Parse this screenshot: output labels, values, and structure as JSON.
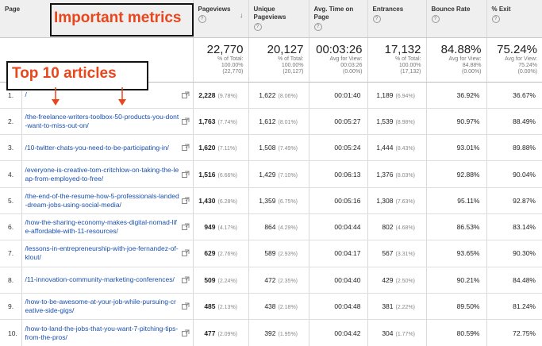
{
  "headers": {
    "page": "Page",
    "pageviews": "Pageviews",
    "unique_pageviews": "Unique Pageviews",
    "avg_time": "Avg. Time on Page",
    "entrances": "Entrances",
    "bounce_rate": "Bounce Rate",
    "exit": "% Exit",
    "help_glyph": "?"
  },
  "totals": {
    "pageviews": {
      "value": "22,770",
      "sub1": "% of Total:",
      "sub2": "100.00%",
      "sub3": "(22,770)"
    },
    "unique": {
      "value": "20,127",
      "sub1": "% of Total:",
      "sub2": "100.00%",
      "sub3": "(20,127)"
    },
    "avg_time": {
      "value": "00:03:26",
      "sub1": "Avg for View:",
      "sub2": "00:03:26",
      "sub3": "(0.00%)"
    },
    "entrances": {
      "value": "17,132",
      "sub1": "% of Total:",
      "sub2": "100.00%",
      "sub3": "(17,132)"
    },
    "bounce": {
      "value": "84.88%",
      "sub1": "Avg for View:",
      "sub2": "84.88%",
      "sub3": "(0.00%)"
    },
    "exit": {
      "value": "75.24%",
      "sub1": "Avg for View:",
      "sub2": "75.24%",
      "sub3": "(0.00%)"
    }
  },
  "rows": [
    {
      "idx": "1.",
      "page": "/",
      "pv": "2,228",
      "pv_pct": "(9.78%)",
      "upv": "1,622",
      "upv_pct": "(8.06%)",
      "time": "00:01:40",
      "ent": "1,189",
      "ent_pct": "(6.94%)",
      "bounce": "36.92%",
      "exit": "36.67%"
    },
    {
      "idx": "2.",
      "page": "/the-freelance-writers-toolbox-50-products-you-dont-want-to-miss-out-on/",
      "pv": "1,763",
      "pv_pct": "(7.74%)",
      "upv": "1,612",
      "upv_pct": "(8.01%)",
      "time": "00:05:27",
      "ent": "1,539",
      "ent_pct": "(8.98%)",
      "bounce": "90.97%",
      "exit": "88.49%"
    },
    {
      "idx": "3.",
      "page": "/10-twitter-chats-you-need-to-be-participating-in/",
      "pv": "1,620",
      "pv_pct": "(7.11%)",
      "upv": "1,508",
      "upv_pct": "(7.49%)",
      "time": "00:05:24",
      "ent": "1,444",
      "ent_pct": "(8.43%)",
      "bounce": "93.01%",
      "exit": "89.88%"
    },
    {
      "idx": "4.",
      "page": "/everyone-is-creative-tom-critchlow-on-taking-the-leap-from-employed-to-free/",
      "pv": "1,516",
      "pv_pct": "(6.66%)",
      "upv": "1,429",
      "upv_pct": "(7.10%)",
      "time": "00:06:13",
      "ent": "1,376",
      "ent_pct": "(8.03%)",
      "bounce": "92.88%",
      "exit": "90.04%"
    },
    {
      "idx": "5.",
      "page": "/the-end-of-the-resume-how-5-professionals-landed-dream-jobs-using-social-media/",
      "pv": "1,430",
      "pv_pct": "(6.28%)",
      "upv": "1,359",
      "upv_pct": "(6.75%)",
      "time": "00:05:16",
      "ent": "1,308",
      "ent_pct": "(7.63%)",
      "bounce": "95.11%",
      "exit": "92.87%"
    },
    {
      "idx": "6.",
      "page": "/how-the-sharing-economy-makes-digital-nomad-life-affordable-with-11-resources/",
      "pv": "949",
      "pv_pct": "(4.17%)",
      "upv": "864",
      "upv_pct": "(4.29%)",
      "time": "00:04:44",
      "ent": "802",
      "ent_pct": "(4.68%)",
      "bounce": "86.53%",
      "exit": "83.14%"
    },
    {
      "idx": "7.",
      "page": "/lessons-in-entrepreneurship-with-joe-fernandez-of-klout/",
      "pv": "629",
      "pv_pct": "(2.76%)",
      "upv": "589",
      "upv_pct": "(2.93%)",
      "time": "00:04:17",
      "ent": "567",
      "ent_pct": "(3.31%)",
      "bounce": "93.65%",
      "exit": "90.30%"
    },
    {
      "idx": "8.",
      "page": "/11-innovation-community-marketing-conferences/",
      "pv": "509",
      "pv_pct": "(2.24%)",
      "upv": "472",
      "upv_pct": "(2.35%)",
      "time": "00:04:40",
      "ent": "429",
      "ent_pct": "(2.50%)",
      "bounce": "90.21%",
      "exit": "84.48%"
    },
    {
      "idx": "9.",
      "page": "/how-to-be-awesome-at-your-job-while-pursuing-creative-side-gigs/",
      "pv": "485",
      "pv_pct": "(2.13%)",
      "upv": "438",
      "upv_pct": "(2.18%)",
      "time": "00:04:48",
      "ent": "381",
      "ent_pct": "(2.22%)",
      "bounce": "89.50%",
      "exit": "81.24%"
    },
    {
      "idx": "10.",
      "page": "/how-to-land-the-jobs-that-you-want-7-pitching-tips-from-the-pros/",
      "pv": "477",
      "pv_pct": "(2.09%)",
      "upv": "392",
      "upv_pct": "(1.95%)",
      "time": "00:04:42",
      "ent": "304",
      "ent_pct": "(1.77%)",
      "bounce": "80.59%",
      "exit": "72.75%"
    }
  ],
  "annotations": {
    "important_metrics": "Important metrics",
    "top_10_articles": "Top 10 articles",
    "accent_color": "#e8461d"
  },
  "icons": {
    "external_link": "external-link-icon",
    "sort": "sort-arrow-down-icon",
    "help": "help-icon"
  }
}
